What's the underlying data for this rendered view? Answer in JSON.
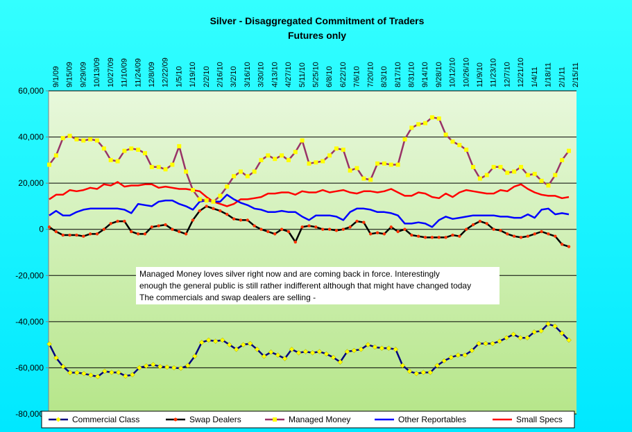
{
  "chart_data": {
    "type": "line",
    "title": "Silver - Disaggregated Commitment of Traders",
    "subtitle": "Futures only",
    "ylim": [
      -80000,
      60000
    ],
    "y_ticks": [
      60000,
      40000,
      20000,
      0,
      -20000,
      -40000,
      -60000,
      -80000
    ],
    "y_tick_labels": [
      "60,000",
      "40,000",
      "20,000",
      "0",
      "-20,000",
      "-40,000",
      "-60,000",
      "-80,000"
    ],
    "x_tick_labels": [
      "9/1/09",
      "9/15/09",
      "9/29/09",
      "10/13/09",
      "10/27/09",
      "11/10/09",
      "11/24/09",
      "12/8/09",
      "12/22/09",
      "1/5/10",
      "1/19/10",
      "2/2/10",
      "2/16/10",
      "3/2/10",
      "3/16/10",
      "3/30/10",
      "4/13/10",
      "4/27/10",
      "5/11/10",
      "5/25/10",
      "6/8/10",
      "6/22/10",
      "7/6/10",
      "7/20/10",
      "8/3/10",
      "8/17/10",
      "8/31/10",
      "9/14/10",
      "9/28/10",
      "10/12/10",
      "10/26/10",
      "11/9/10",
      "11/23/10",
      "12/7/10",
      "12/21/10",
      "1/4/11",
      "1/18/11",
      "2/1/11",
      "2/15/11"
    ],
    "grid": "horizontal",
    "legend_position": "bottom",
    "series": [
      {
        "name": "Commercial Class",
        "color": "#000080",
        "marker": "diamond",
        "marker_color": "#FFFF00",
        "values": [
          -49700,
          -55700,
          -59500,
          -62100,
          -62100,
          -62500,
          -63200,
          -63800,
          -61500,
          -62000,
          -62000,
          -63600,
          -63000,
          -60000,
          -59200,
          -58600,
          -59500,
          -59700,
          -60000,
          -60200,
          -59000,
          -55000,
          -49000,
          -48000,
          -48500,
          -48000,
          -50000,
          -52000,
          -50000,
          -49500,
          -52000,
          -55000,
          -53200,
          -54500,
          -56000,
          -52000,
          -53500,
          -53000,
          -53500,
          -53000,
          -54000,
          -55500,
          -57500,
          -53000,
          -52500,
          -52000,
          -50000,
          -51000,
          -51500,
          -51500,
          -52000,
          -59000,
          -61500,
          -62500,
          -62000,
          -62000,
          -59000,
          -57000,
          -55500,
          -54500,
          -54500,
          -52500,
          -49500,
          -49500,
          -49500,
          -48500,
          -47000,
          -45500,
          -47000,
          -47000,
          -44500,
          -44000,
          -41000,
          -42000,
          -45000,
          -48000
        ]
      },
      {
        "name": "Swap Dealers",
        "color": "#000000",
        "marker": "circle",
        "marker_color": "#FF3300",
        "values": [
          1000,
          -1000,
          -2500,
          -2500,
          -2500,
          -3000,
          -2000,
          -2000,
          0,
          2500,
          3500,
          3500,
          -1000,
          -2000,
          -2000,
          1000,
          1500,
          2000,
          0,
          -1000,
          -2000,
          4000,
          8000,
          10000,
          9000,
          8000,
          6500,
          4500,
          4000,
          4000,
          1500,
          0,
          -1000,
          -2000,
          0,
          -1000,
          -5500,
          1000,
          1500,
          1000,
          0,
          0,
          -500,
          0,
          1000,
          3500,
          3000,
          -2000,
          -1500,
          -2000,
          1000,
          -1000,
          0,
          -2500,
          -3000,
          -3500,
          -3500,
          -3500,
          -3500,
          -2500,
          -3000,
          0,
          2000,
          3500,
          2500,
          0,
          -500,
          -2000,
          -3000,
          -3500,
          -3000,
          -2000,
          -1000,
          -2000,
          -3000,
          -6500,
          -7500
        ]
      },
      {
        "name": "Managed Money",
        "color": "#993366",
        "marker": "square",
        "marker_color": "#FFFF00",
        "values": [
          28000,
          32000,
          39500,
          40500,
          39000,
          38500,
          39000,
          38500,
          35000,
          30000,
          29500,
          34000,
          35000,
          34500,
          33000,
          27000,
          27000,
          26000,
          28000,
          36000,
          25000,
          17000,
          13000,
          12500,
          12000,
          14500,
          18500,
          23000,
          25000,
          23000,
          25000,
          30000,
          32000,
          30500,
          32000,
          30000,
          33500,
          38500,
          28500,
          29000,
          29500,
          32000,
          35000,
          34500,
          25500,
          26500,
          22000,
          21500,
          28500,
          28500,
          28000,
          28000,
          39000,
          44000,
          45500,
          46000,
          48500,
          48000,
          41000,
          38000,
          36500,
          34500,
          27000,
          22000,
          23500,
          27000,
          27000,
          24500,
          25000,
          27000,
          23500,
          24000,
          21000,
          19000,
          23500,
          30000,
          34000
        ]
      },
      {
        "name": "Other Reportables",
        "color": "#0000FF",
        "marker": "none",
        "values": [
          6000,
          8000,
          6000,
          6000,
          7500,
          8500,
          9000,
          9000,
          9000,
          9000,
          9000,
          8500,
          7000,
          11000,
          10500,
          10000,
          12000,
          12500,
          12500,
          11000,
          10000,
          8500,
          12000,
          12500,
          12000,
          12000,
          15000,
          13000,
          11500,
          10500,
          9000,
          8500,
          7500,
          7500,
          8000,
          7500,
          7500,
          5500,
          4000,
          6000,
          6000,
          6000,
          5500,
          4000,
          7500,
          9000,
          9000,
          8500,
          7500,
          7500,
          7000,
          6000,
          2500,
          2500,
          3000,
          2500,
          1000,
          4000,
          5500,
          4500,
          5000,
          5500,
          6000,
          6000,
          6000,
          6000,
          5500,
          5500,
          5000,
          5000,
          6500,
          5000,
          8500,
          9000,
          6500,
          7000,
          6500
        ]
      },
      {
        "name": "Small Specs",
        "color": "#FF0000",
        "marker": "none",
        "values": [
          13000,
          15000,
          15000,
          17000,
          16500,
          17000,
          18000,
          17500,
          19500,
          19000,
          20500,
          18500,
          19000,
          19000,
          19500,
          19500,
          18000,
          18500,
          18000,
          17500,
          17500,
          17000,
          16500,
          14000,
          12000,
          11000,
          10000,
          11000,
          13000,
          13000,
          13500,
          14000,
          15500,
          15500,
          16000,
          16000,
          15000,
          16500,
          16000,
          16000,
          17000,
          16000,
          16500,
          17000,
          16000,
          15500,
          16500,
          16500,
          16000,
          16500,
          17500,
          16000,
          14500,
          14500,
          16000,
          15500,
          14000,
          13500,
          15500,
          14000,
          16000,
          17000,
          16500,
          16000,
          15500,
          15500,
          17000,
          16500,
          18500,
          19500,
          17500,
          16000,
          15000,
          14500,
          14500,
          13500,
          14000
        ]
      }
    ],
    "annotation": [
      "Managed Money loves silver right now and are coming back in force. Interestingly",
      "enough the general public is still rather indifferent although that might have changed today",
      "The commercials and swap dealers are selling -"
    ]
  },
  "colors": {
    "background": "#00FFFF",
    "plot_top": "#E6F7D7",
    "plot_bottom": "#B9E78C"
  }
}
